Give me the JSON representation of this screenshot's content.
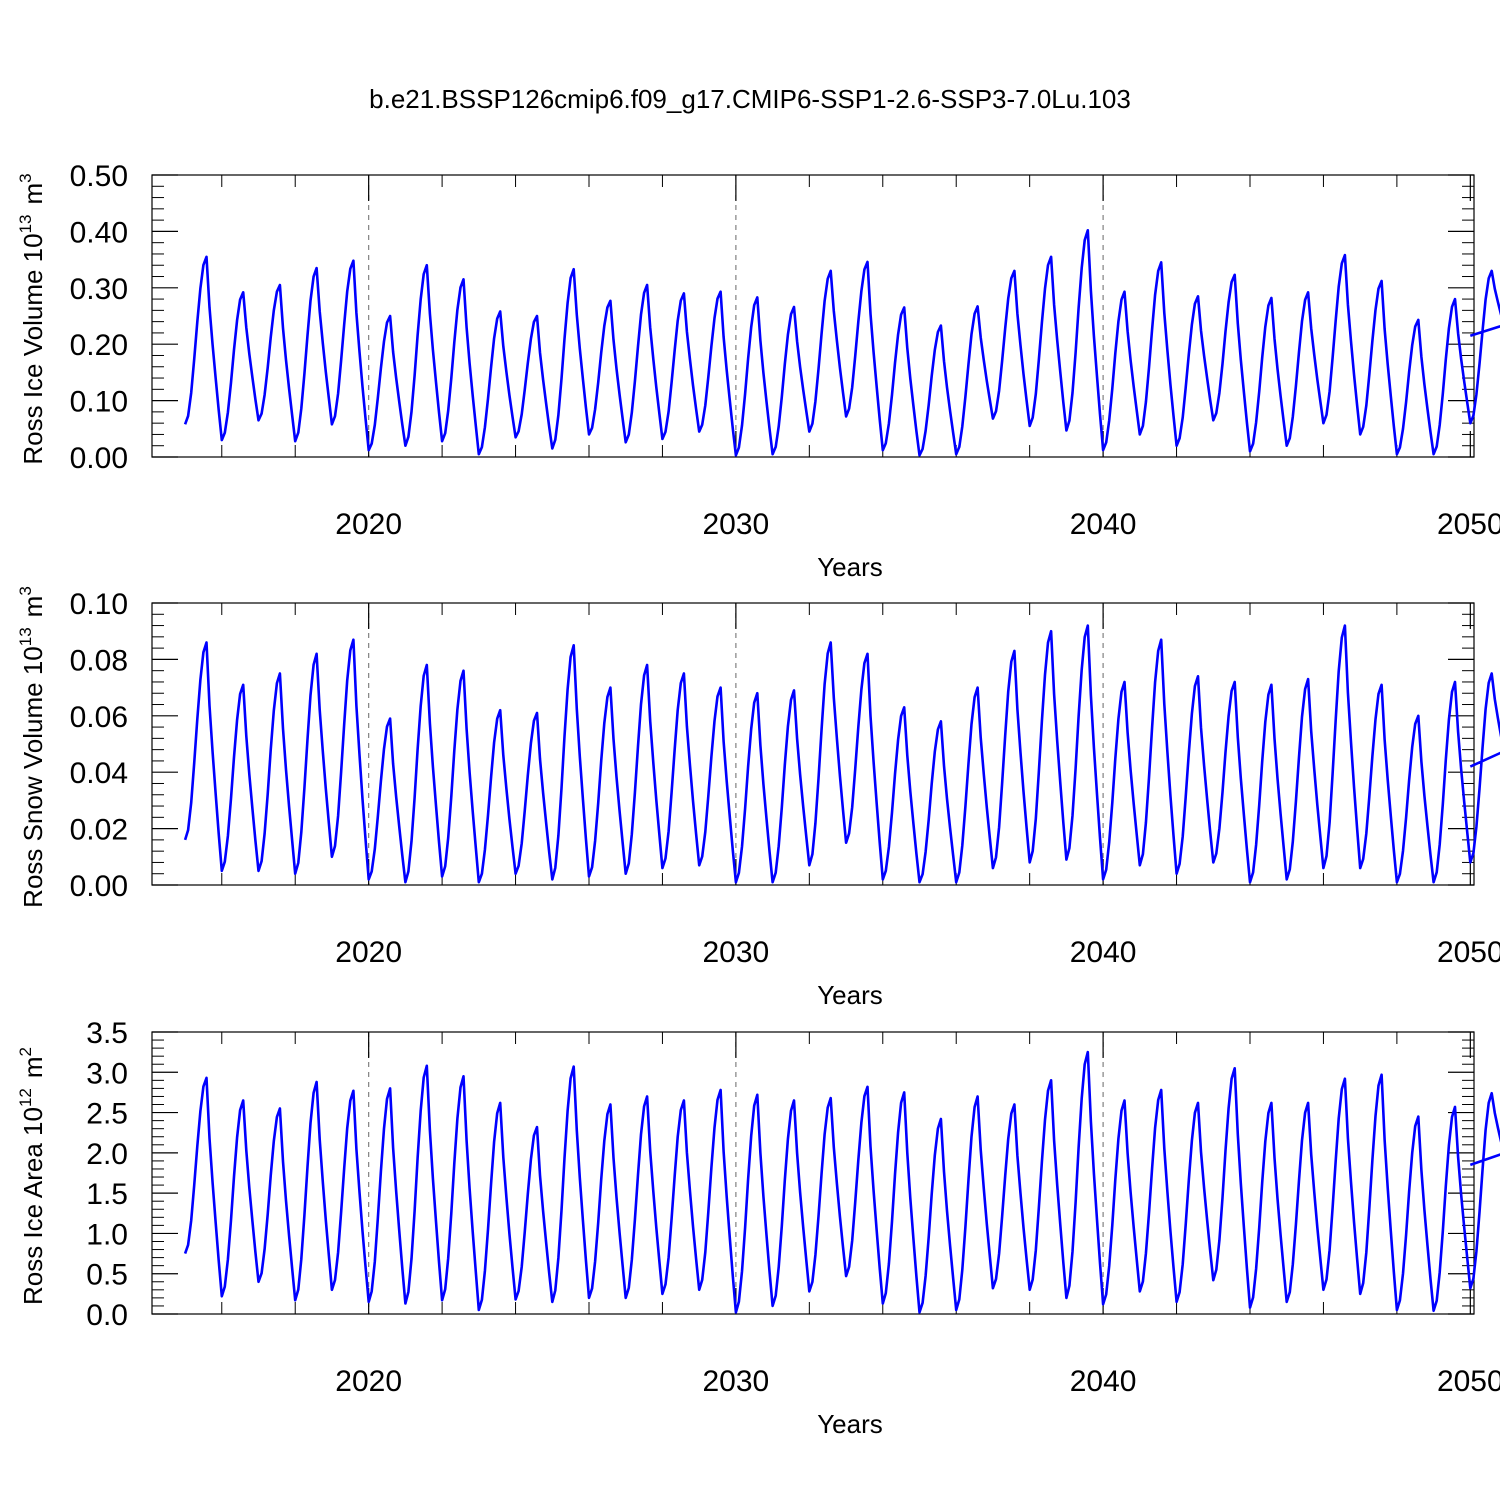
{
  "title": "b.e21.BSSP126cmip6.f09_g17.CMIP6-SSP1-2.6-SSP3-7.0Lu.103",
  "colors": {
    "line": "#0000ff",
    "axis": "#000000",
    "refline": "#808080"
  },
  "chart_data": [
    {
      "type": "line",
      "id": "ice_volume",
      "ylabel": "Ross Ice Volume 10",
      "ylabel_sup": "13",
      "ylabel_unit": "m",
      "ylabel_unit_sup": "3",
      "xlabel": "Years",
      "xlim": [
        2014.1,
        2050.1
      ],
      "ylim": [
        0.0,
        0.5
      ],
      "yticks": [
        "0.00",
        "0.10",
        "0.20",
        "0.30",
        "0.40",
        "0.50"
      ],
      "ytick_values": [
        0.0,
        0.1,
        0.2,
        0.3,
        0.4,
        0.5
      ],
      "xticks": [
        "2020",
        "2030",
        "2040",
        "2050"
      ],
      "xtick_values": [
        2020,
        2030,
        2040,
        2050
      ],
      "reference_lines_x": [
        2020,
        2030,
        2040
      ],
      "series": [
        {
          "name": "Ross Ice Volume",
          "start_x": 2015.0,
          "end_x": 2050.0,
          "peaks": [
            0.355,
            0.292,
            0.305,
            0.335,
            0.348,
            0.25,
            0.34,
            0.315,
            0.258,
            0.25,
            0.333,
            0.277,
            0.305,
            0.29,
            0.293,
            0.283,
            0.266,
            0.33,
            0.346,
            0.265,
            0.233,
            0.267,
            0.33,
            0.355,
            0.402,
            0.293,
            0.345,
            0.285,
            0.323,
            0.282,
            0.292,
            0.358,
            0.312,
            0.243,
            0.28,
            0.33
          ],
          "troughs": [
            0.058,
            0.03,
            0.065,
            0.028,
            0.058,
            0.012,
            0.02,
            0.028,
            0.005,
            0.035,
            0.015,
            0.04,
            0.026,
            0.032,
            0.045,
            0.003,
            0.005,
            0.045,
            0.072,
            0.012,
            0.003,
            0.005,
            0.068,
            0.055,
            0.047,
            0.012,
            0.04,
            0.02,
            0.065,
            0.01,
            0.02,
            0.06,
            0.04,
            0.005,
            0.005,
            0.06,
            0.215
          ]
        }
      ]
    },
    {
      "type": "line",
      "id": "snow_volume",
      "ylabel": "Ross Snow Volume 10",
      "ylabel_sup": "13",
      "ylabel_unit": "m",
      "ylabel_unit_sup": "3",
      "xlabel": "Years",
      "xlim": [
        2014.1,
        2050.1
      ],
      "ylim": [
        0.0,
        0.1
      ],
      "yticks": [
        "0.00",
        "0.02",
        "0.04",
        "0.06",
        "0.08",
        "0.10"
      ],
      "ytick_values": [
        0.0,
        0.02,
        0.04,
        0.06,
        0.08,
        0.1
      ],
      "xticks": [
        "2020",
        "2030",
        "2040",
        "2050"
      ],
      "xtick_values": [
        2020,
        2030,
        2040,
        2050
      ],
      "reference_lines_x": [
        2020,
        2030,
        2040
      ],
      "series": [
        {
          "name": "Ross Snow Volume",
          "start_x": 2015.0,
          "end_x": 2050.0,
          "peaks": [
            0.086,
            0.071,
            0.075,
            0.082,
            0.087,
            0.059,
            0.078,
            0.076,
            0.062,
            0.061,
            0.085,
            0.07,
            0.078,
            0.075,
            0.07,
            0.068,
            0.069,
            0.086,
            0.082,
            0.063,
            0.058,
            0.07,
            0.083,
            0.09,
            0.092,
            0.072,
            0.087,
            0.074,
            0.072,
            0.071,
            0.073,
            0.092,
            0.071,
            0.06,
            0.072,
            0.075
          ],
          "troughs": [
            0.016,
            0.005,
            0.005,
            0.004,
            0.01,
            0.002,
            0.001,
            0.003,
            0.001,
            0.004,
            0.002,
            0.003,
            0.004,
            0.006,
            0.007,
            0.001,
            0.001,
            0.007,
            0.015,
            0.002,
            0.001,
            0.001,
            0.006,
            0.008,
            0.009,
            0.002,
            0.007,
            0.004,
            0.008,
            0.001,
            0.002,
            0.006,
            0.006,
            0.001,
            0.001,
            0.008,
            0.042
          ]
        }
      ]
    },
    {
      "type": "line",
      "id": "ice_area",
      "ylabel": "Ross Ice Area 10",
      "ylabel_sup": "12",
      "ylabel_unit": "m",
      "ylabel_unit_sup": "2",
      "xlabel": "Years",
      "xlim": [
        2014.1,
        2050.1
      ],
      "ylim": [
        0.0,
        3.5
      ],
      "yticks": [
        "0.0",
        "0.5",
        "1.0",
        "1.5",
        "2.0",
        "2.5",
        "3.0",
        "3.5"
      ],
      "ytick_values": [
        0.0,
        0.5,
        1.0,
        1.5,
        2.0,
        2.5,
        3.0,
        3.5
      ],
      "xticks": [
        "2020",
        "2030",
        "2040",
        "2050"
      ],
      "xtick_values": [
        2020,
        2030,
        2040,
        2050
      ],
      "reference_lines_x": [
        2020,
        2030,
        2040
      ],
      "series": [
        {
          "name": "Ross Ice Area",
          "start_x": 2015.0,
          "end_x": 2050.0,
          "peaks": [
            2.93,
            2.65,
            2.55,
            2.88,
            2.77,
            2.8,
            3.08,
            2.95,
            2.62,
            2.32,
            3.07,
            2.6,
            2.7,
            2.65,
            2.78,
            2.72,
            2.65,
            2.68,
            2.82,
            2.75,
            2.42,
            2.7,
            2.6,
            2.9,
            3.25,
            2.65,
            2.78,
            2.62,
            3.05,
            2.62,
            2.62,
            2.92,
            2.97,
            2.45,
            2.57,
            2.74
          ],
          "troughs": [
            0.75,
            0.22,
            0.4,
            0.17,
            0.3,
            0.15,
            0.13,
            0.17,
            0.05,
            0.18,
            0.15,
            0.2,
            0.2,
            0.25,
            0.3,
            0.02,
            0.1,
            0.28,
            0.47,
            0.13,
            0.02,
            0.05,
            0.32,
            0.3,
            0.2,
            0.12,
            0.28,
            0.15,
            0.42,
            0.08,
            0.15,
            0.3,
            0.25,
            0.05,
            0.04,
            0.32,
            1.85
          ]
        }
      ]
    }
  ]
}
